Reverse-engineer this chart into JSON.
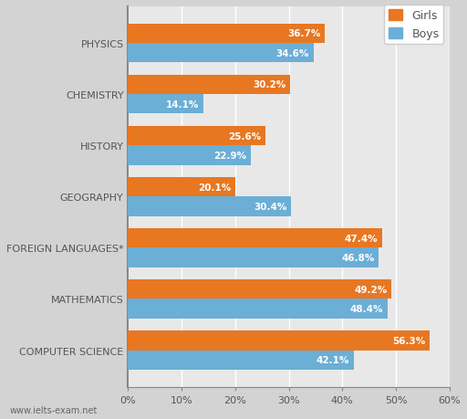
{
  "categories": [
    "COMPUTER SCIENCE",
    "MATHEMATICS",
    "FOREIGN LANGUAGES*",
    "GEOGRAPHY",
    "HISTORY",
    "CHEMISTRY",
    "PHYSICS"
  ],
  "girls": [
    56.3,
    49.2,
    47.4,
    20.1,
    25.6,
    30.2,
    36.7
  ],
  "boys": [
    42.1,
    48.4,
    46.8,
    30.4,
    22.9,
    14.1,
    34.6
  ],
  "girl_color": "#E87722",
  "boy_color": "#6BAED6",
  "background_color": "#D3D3D3",
  "plot_background": "#E8E8E8",
  "xlim": [
    0,
    60
  ],
  "xticks": [
    0,
    10,
    20,
    30,
    40,
    50,
    60
  ],
  "xtick_labels": [
    "0%",
    "10%",
    "20%",
    "30%",
    "40%",
    "50%",
    "60%"
  ],
  "legend_girls": "Girls",
  "legend_boys": "Boys",
  "bar_height": 0.38,
  "label_fontsize": 7.5,
  "tick_fontsize": 8,
  "watermark": "www.ielts-exam.net"
}
